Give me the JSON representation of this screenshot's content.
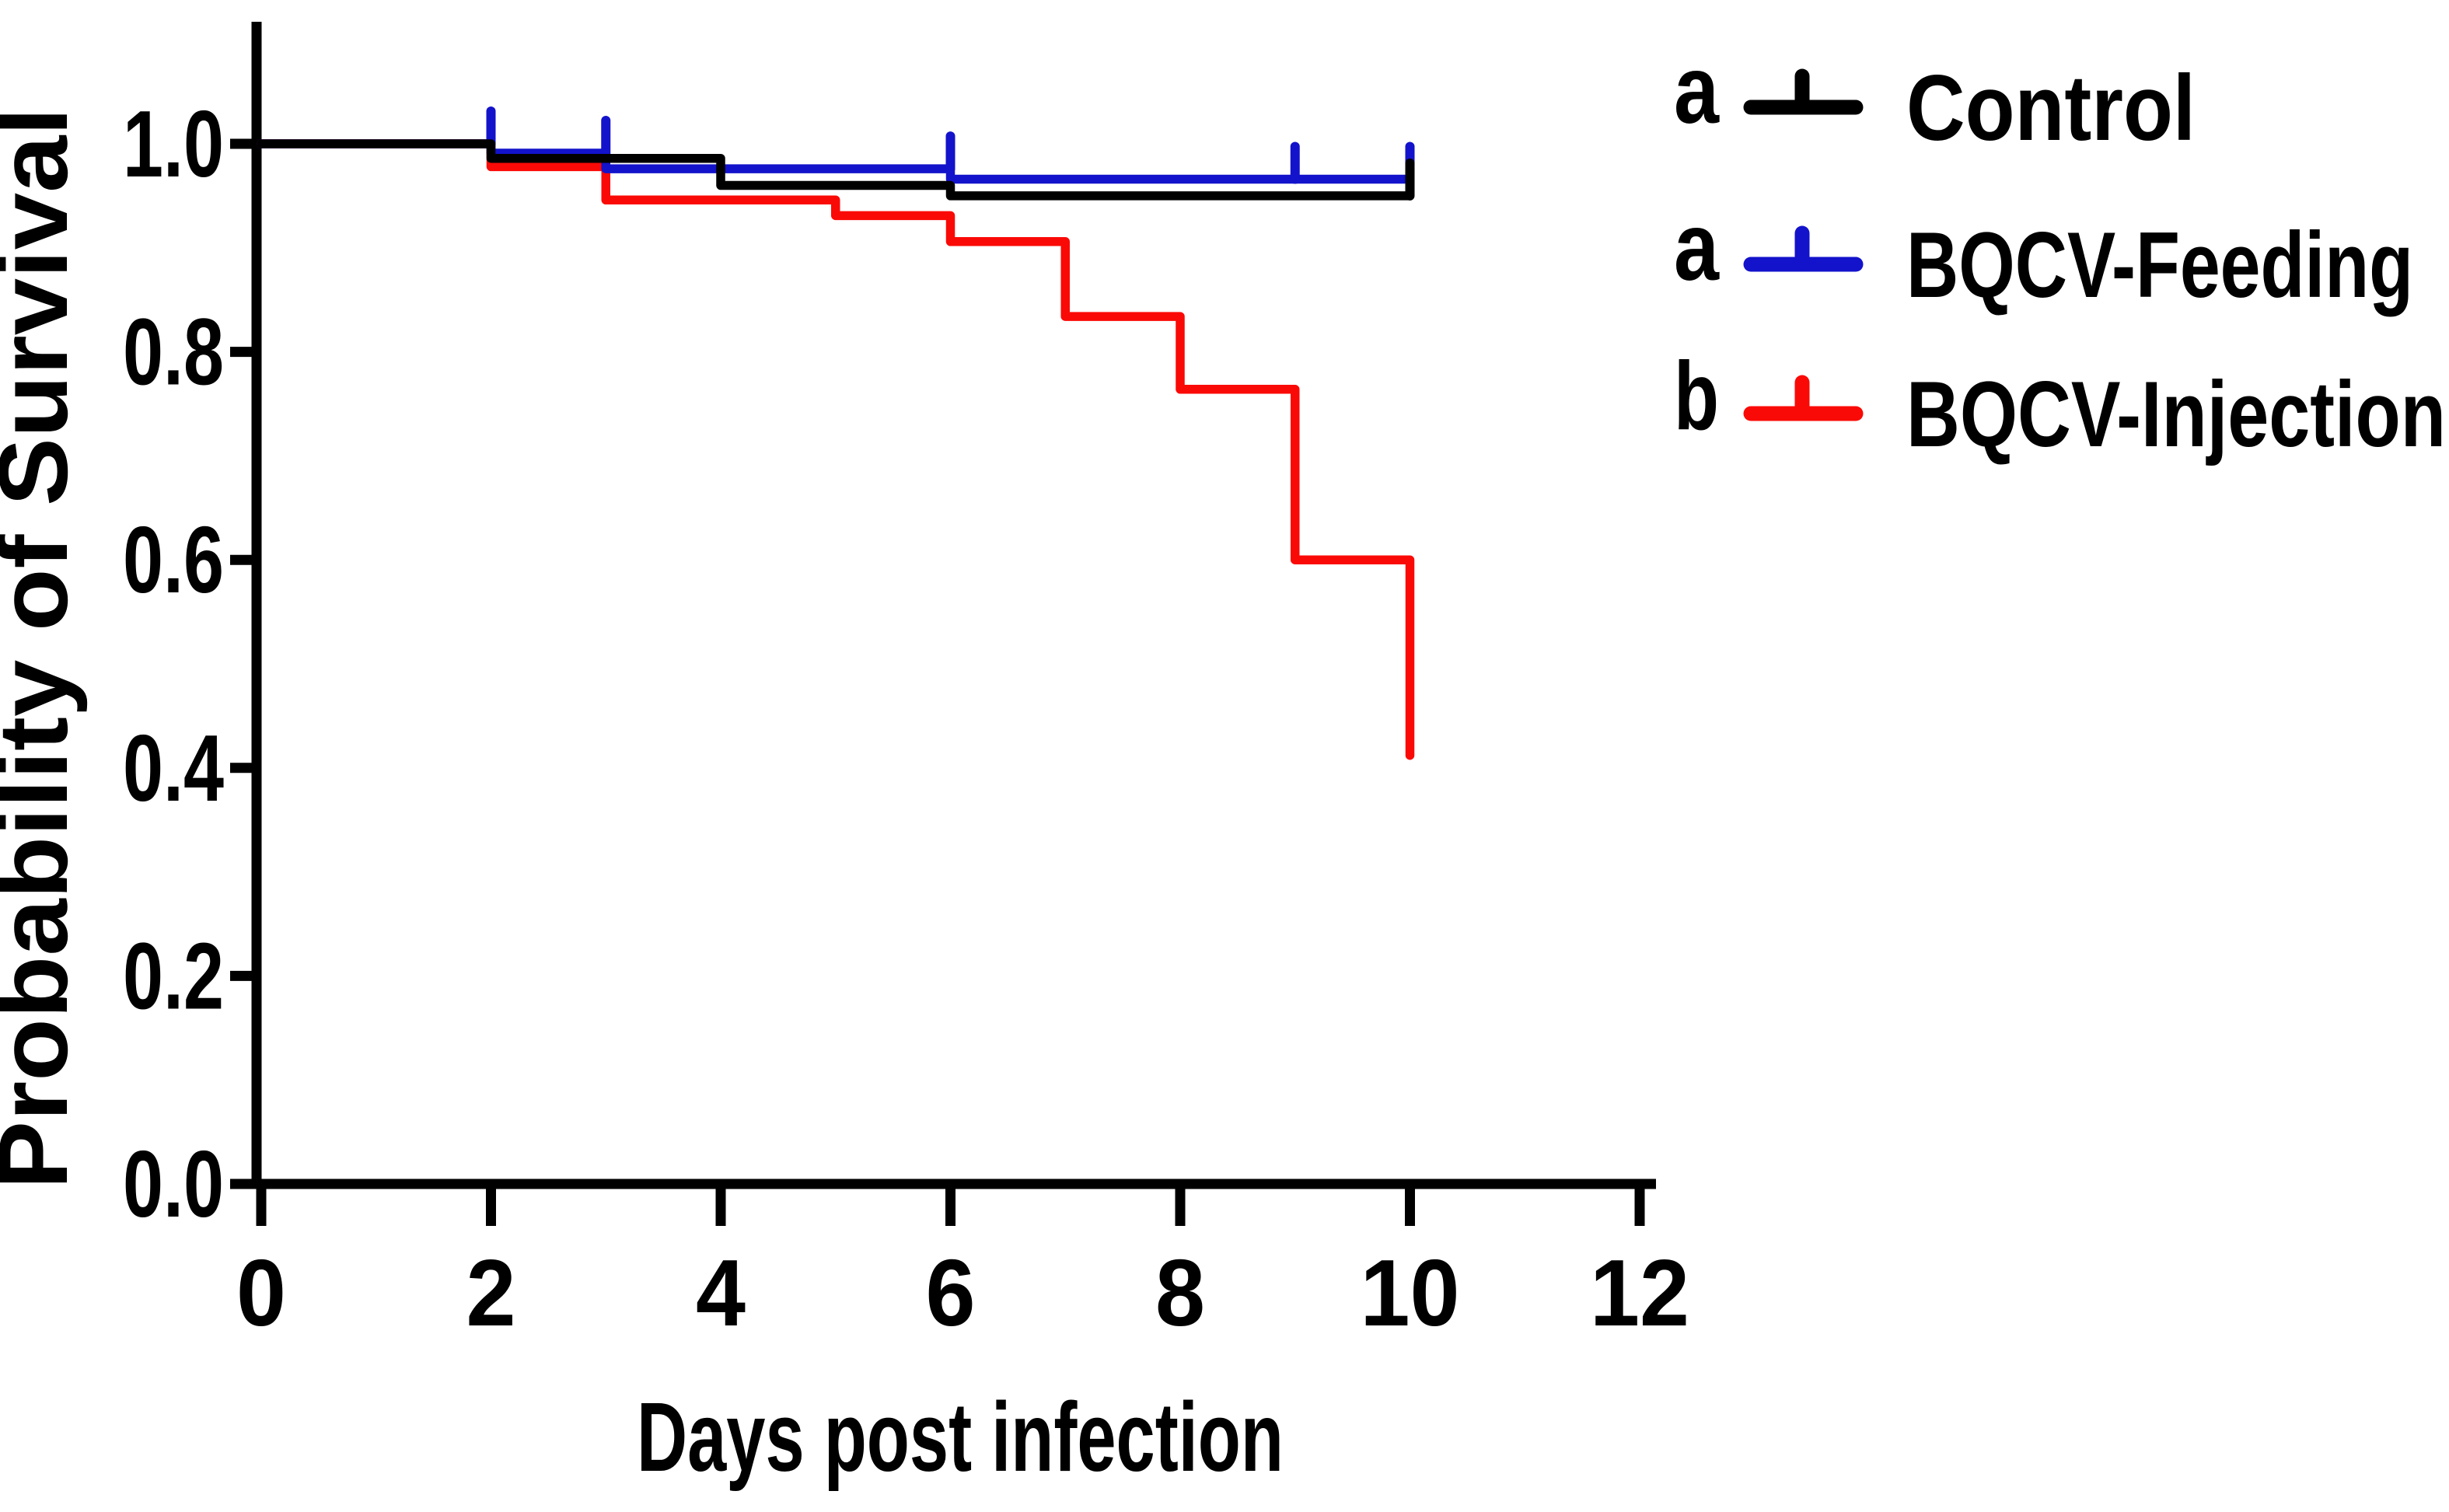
{
  "figure": {
    "background_color": "#ffffff",
    "axis_color": "#000000",
    "y_axis": {
      "title": "Probability of Survival",
      "tick_labels": [
        "1.0",
        "0.8",
        "0.6",
        "0.4",
        "0.2",
        "0.0"
      ],
      "tick_values": [
        1.0,
        0.8,
        0.6,
        0.4,
        0.2,
        0.0
      ]
    },
    "x_axis": {
      "title": "Days post infection",
      "tick_labels": [
        "0",
        "2",
        "4",
        "6",
        "8",
        "10",
        "12"
      ],
      "tick_values": [
        0,
        2,
        4,
        6,
        8,
        10,
        12
      ]
    },
    "legend": [
      {
        "letter": "a",
        "label": "Control",
        "color": "#000000"
      },
      {
        "letter": "a",
        "label": "BQCV-Feeding",
        "color": "#1313CB"
      },
      {
        "letter": "b",
        "label": "BQCV-Injection",
        "color": "#FA0A06"
      }
    ]
  },
  "chart_data": {
    "type": "line",
    "subtype": "kaplan-meier-step-survival",
    "title": "",
    "xlabel": "Days post infection",
    "ylabel": "Probability of Survival",
    "xlim": [
      0,
      12
    ],
    "ylim": [
      0.0,
      1.1
    ],
    "x_ticks": [
      0,
      2,
      4,
      6,
      8,
      10,
      12
    ],
    "y_ticks": [
      1.0,
      0.8,
      0.6,
      0.4,
      0.2,
      0.0
    ],
    "grid": false,
    "legend_position": "top-right-outside",
    "series": [
      {
        "name": "Control",
        "significance_letter": "a",
        "color": "#000000",
        "points": [
          [
            0,
            1.0
          ],
          [
            2,
            1.0
          ],
          [
            2,
            0.986
          ],
          [
            4,
            0.986
          ],
          [
            4,
            0.96
          ],
          [
            6,
            0.96
          ],
          [
            6,
            0.95
          ],
          [
            10,
            0.95
          ]
        ],
        "censor_ticks": [
          [
            10,
            0.95
          ]
        ]
      },
      {
        "name": "BQCV-Feeding",
        "significance_letter": "a",
        "color": "#1313CB",
        "points": [
          [
            0,
            1.0
          ],
          [
            2,
            1.0
          ],
          [
            2,
            0.991
          ],
          [
            3,
            0.991
          ],
          [
            3,
            0.976
          ],
          [
            6,
            0.976
          ],
          [
            6,
            0.966
          ],
          [
            10,
            0.966
          ]
        ],
        "censor_ticks": [
          [
            2,
            1.0
          ],
          [
            3,
            0.991
          ],
          [
            6,
            0.976
          ],
          [
            9,
            0.966
          ],
          [
            10,
            0.966
          ]
        ]
      },
      {
        "name": "BQCV-Injection",
        "significance_letter": "b",
        "color": "#FA0A06",
        "points": [
          [
            0,
            1.0
          ],
          [
            2,
            1.0
          ],
          [
            2,
            0.978
          ],
          [
            3,
            0.978
          ],
          [
            3,
            0.946
          ],
          [
            5,
            0.946
          ],
          [
            5,
            0.931
          ],
          [
            6,
            0.931
          ],
          [
            6,
            0.906
          ],
          [
            7,
            0.906
          ],
          [
            7,
            0.834
          ],
          [
            8,
            0.834
          ],
          [
            8,
            0.764
          ],
          [
            9,
            0.764
          ],
          [
            9,
            0.6
          ],
          [
            10,
            0.6
          ],
          [
            10,
            0.412
          ]
        ],
        "censor_ticks": []
      }
    ]
  }
}
